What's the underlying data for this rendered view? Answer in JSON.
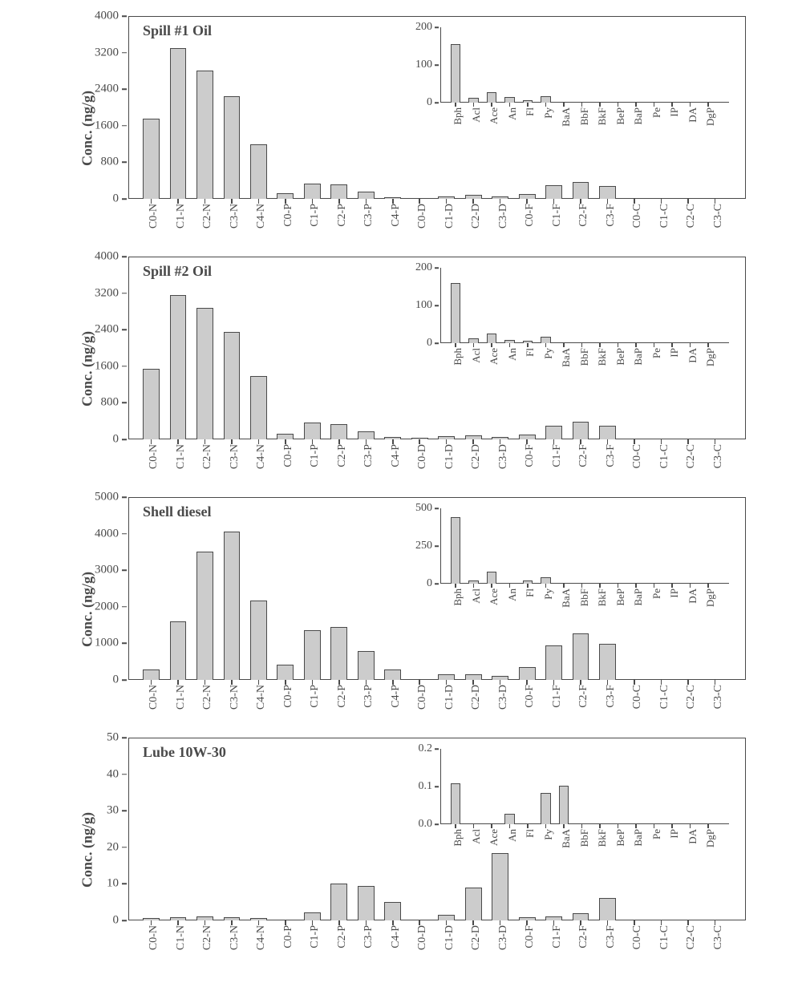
{
  "figure": {
    "bar_fill": "#cccccc",
    "bar_stroke": "#4a4a4a",
    "text_color": "#4a4a4a",
    "ylabel": "Conc. (ng/g)",
    "main_categories": [
      "C0-N",
      "C1-N",
      "C2-N",
      "C3-N",
      "C4-N",
      "C0-P",
      "C1-P",
      "C2-P",
      "C3-P",
      "C4-P",
      "C0-D",
      "C1-D",
      "C2-D",
      "C3-D",
      "C0-F",
      "C1-F",
      "C2-F",
      "C3-F",
      "C0-C",
      "C1-C",
      "C2-C",
      "C3-C"
    ],
    "inset_categories": [
      "Bph",
      "Acl",
      "Ace",
      "An",
      "Fl",
      "Py",
      "BaA",
      "BbF",
      "BkF",
      "BeP",
      "BaP",
      "Pe",
      "IP",
      "DA",
      "DgP"
    ],
    "panels": [
      {
        "title": "Spill #1 Oil",
        "ymax": 4000,
        "ytick_step": 800,
        "values": [
          1750,
          3300,
          2800,
          2250,
          1200,
          120,
          330,
          320,
          150,
          40,
          20,
          60,
          80,
          50,
          100,
          300,
          370,
          280,
          0,
          0,
          0,
          0
        ],
        "inset": {
          "ymax": 200,
          "ytick_step": 100,
          "values": [
            155,
            12,
            28,
            14,
            7,
            18,
            3,
            0,
            0,
            0,
            0,
            0,
            0,
            0,
            0
          ]
        }
      },
      {
        "title": "Spill #2 Oil",
        "ymax": 4000,
        "ytick_step": 800,
        "values": [
          1550,
          3150,
          2880,
          2350,
          1380,
          130,
          360,
          340,
          170,
          45,
          30,
          70,
          90,
          55,
          110,
          290,
          380,
          300,
          0,
          0,
          0,
          0
        ],
        "inset": {
          "ymax": 200,
          "ytick_step": 100,
          "values": [
            160,
            12,
            26,
            8,
            6,
            18,
            3,
            0,
            0,
            0,
            0,
            0,
            0,
            0,
            0
          ]
        }
      },
      {
        "title": "Shell diesel",
        "ymax": 5000,
        "ytick_step": 1000,
        "values": [
          280,
          1600,
          3500,
          4050,
          2180,
          420,
          1360,
          1450,
          800,
          280,
          30,
          160,
          150,
          110,
          360,
          940,
          1270,
          980,
          0,
          0,
          0,
          0
        ],
        "inset": {
          "ymax": 500,
          "ytick_step": 250,
          "values": [
            440,
            20,
            80,
            5,
            20,
            45,
            3,
            0,
            0,
            0,
            0,
            0,
            0,
            0,
            0
          ]
        }
      },
      {
        "title": "Lube 10W-30",
        "ymax": 50,
        "ytick_step": 10,
        "values": [
          0.6,
          0.8,
          1.2,
          0.9,
          0.7,
          0.2,
          2.2,
          10,
          9.5,
          5.1,
          0.2,
          1.6,
          9,
          18.5,
          0.8,
          1.0,
          2.0,
          6.2,
          0,
          0,
          0,
          0
        ],
        "inset": {
          "ymax": 0.2,
          "ytick_step": 0.1,
          "values": [
            0.108,
            0,
            0,
            0.028,
            0,
            0.083,
            0.102,
            0,
            0,
            0,
            0,
            0,
            0,
            0,
            0
          ]
        }
      }
    ]
  }
}
